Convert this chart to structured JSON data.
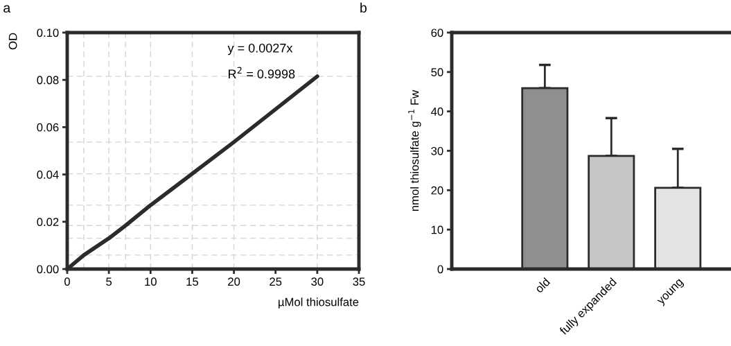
{
  "chart_data": [
    {
      "type": "line",
      "xlabel": "µMol thiosulfate",
      "ylabel": "OD",
      "annotations": [
        "a",
        "y = 0.0027x",
        "R$^{2}$ = 0.9998"
      ],
      "series": [
        {
          "color": "#2b2b2b",
          "x": [
            0,
            2,
            5,
            7,
            10,
            15,
            20,
            30
          ],
          "values": [
            0,
            0.0059,
            0.013,
            0.0184,
            0.027,
            0.0403,
            0.0537,
            0.0815
          ]
        }
      ],
      "xlim": [
        0,
        35
      ],
      "xticks": [
        0,
        5,
        10,
        15,
        20,
        25,
        30,
        35
      ],
      "ylim": [
        0,
        0.1
      ],
      "yticks": [
        {
          "value": 0,
          "label": "0.00"
        },
        {
          "value": 0.02,
          "label": "0.02"
        },
        {
          "value": 0.04,
          "label": "0.04"
        },
        {
          "value": 0.06,
          "label": "0.06"
        },
        {
          "value": 0.08,
          "label": "0.08"
        },
        {
          "value": 0.1,
          "label": "0.10"
        }
      ],
      "ref_lines": [
        {
          "axis": "y",
          "value": 0.0059,
          "color": "#d4d4d4",
          "line_style": "dashed"
        },
        {
          "axis": "y",
          "value": 0.013,
          "color": "#d4d4d4",
          "line_style": "dashed"
        },
        {
          "axis": "y",
          "value": 0.0184,
          "color": "#d4d4d4",
          "line_style": "dashed"
        },
        {
          "axis": "y",
          "value": 0.027,
          "color": "#d4d4d4",
          "line_style": "dashed"
        },
        {
          "axis": "y",
          "value": 0.0403,
          "color": "#d4d4d4",
          "line_style": "dashed"
        },
        {
          "axis": "y",
          "value": 0.0537,
          "color": "#d4d4d4",
          "line_style": "dashed"
        },
        {
          "axis": "y",
          "value": 0.0815,
          "color": "#d4d4d4",
          "line_style": "dashed"
        },
        {
          "axis": "x",
          "value": 2,
          "color": "#d4d4d4",
          "line_style": "dashed"
        },
        {
          "axis": "x",
          "value": 5,
          "color": "#d4d4d4",
          "line_style": "dashed"
        },
        {
          "axis": "x",
          "value": 7,
          "color": "#d4d4d4",
          "line_style": "dashed"
        },
        {
          "axis": "x",
          "value": 10,
          "color": "#d4d4d4",
          "line_style": "dashed"
        },
        {
          "axis": "x",
          "value": 15,
          "color": "#d4d4d4",
          "line_style": "dashed"
        },
        {
          "axis": "x",
          "value": 20,
          "color": "#d4d4d4",
          "line_style": "dashed"
        },
        {
          "axis": "x",
          "value": 30,
          "color": "#d4d4d4",
          "line_style": "dashed"
        }
      ],
      "grid": false,
      "legend": false,
      "marker": "none",
      "line_style": "solid"
    },
    {
      "type": "bar",
      "ylabel": "nmol thiosulfate g$^{−1}$ Fw",
      "annotations": [
        "b"
      ],
      "categories": [
        "old",
        "fully expanded",
        "young"
      ],
      "values": [
        45.9,
        28.7,
        20.6
      ],
      "colors": [
        "#8f8f8f",
        "#c6c6c6",
        "#e4e4e4"
      ],
      "errors": [
        [
          45.9,
          51.8
        ],
        [
          28.7,
          38.3
        ],
        [
          20.6,
          30.5
        ]
      ],
      "ylim": [
        0,
        60
      ],
      "yticks": [
        0,
        10,
        20,
        30,
        40,
        50,
        60
      ],
      "grid": false,
      "legend": false
    }
  ]
}
